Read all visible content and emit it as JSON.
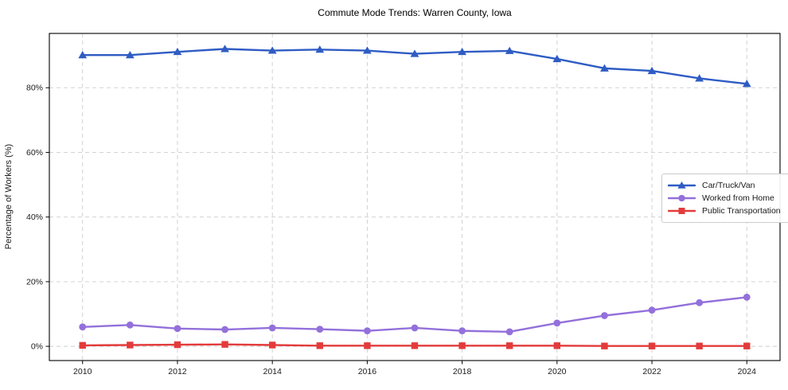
{
  "chart_data": {
    "type": "line",
    "title": "Commute Mode Trends: Warren County, Iowa",
    "ylabel": "Percentage of Workers (%)",
    "xlabel": "",
    "x": [
      2010,
      2011,
      2012,
      2013,
      2014,
      2015,
      2016,
      2017,
      2018,
      2019,
      2020,
      2021,
      2022,
      2023,
      2024
    ],
    "series": [
      {
        "name": "Car/Truck/Van",
        "marker": "triangle",
        "color": "#2f5cc4",
        "values": [
          90.1,
          90.1,
          91.1,
          92.0,
          91.5,
          91.8,
          91.5,
          90.5,
          91.1,
          91.4,
          88.9,
          86.0,
          85.2,
          82.9,
          81.2
        ]
      },
      {
        "name": "Worked from Home",
        "marker": "circle",
        "color": "#9370db",
        "values": [
          6.0,
          6.6,
          5.5,
          5.2,
          5.7,
          5.3,
          4.8,
          5.7,
          4.8,
          4.5,
          7.2,
          9.5,
          11.2,
          13.5,
          15.2
        ]
      },
      {
        "name": "Public Transportation",
        "marker": "square",
        "color": "#e33b3b",
        "values": [
          0.3,
          0.4,
          0.5,
          0.6,
          0.4,
          0.2,
          0.2,
          0.2,
          0.2,
          0.2,
          0.2,
          0.1,
          0.1,
          0.1,
          0.1
        ]
      }
    ],
    "xlim": [
      2009.3,
      2024.7
    ],
    "ylim": [
      -4.4,
      96.8
    ],
    "xticks": {
      "values": [
        2010,
        2012,
        2014,
        2016,
        2018,
        2020,
        2022,
        2024
      ],
      "labels": [
        "2010",
        "2012",
        "2014",
        "2016",
        "2018",
        "2020",
        "2022",
        "2024"
      ]
    },
    "yticks": {
      "values": [
        0,
        20,
        40,
        60,
        80
      ],
      "labels": [
        "0%",
        "20%",
        "40%",
        "60%",
        "80%"
      ]
    },
    "grid": true,
    "grid_color": "#cccccc",
    "spine_color": "#000000",
    "tick_label_color": "#1a1a1a",
    "legend_position": "center right"
  }
}
